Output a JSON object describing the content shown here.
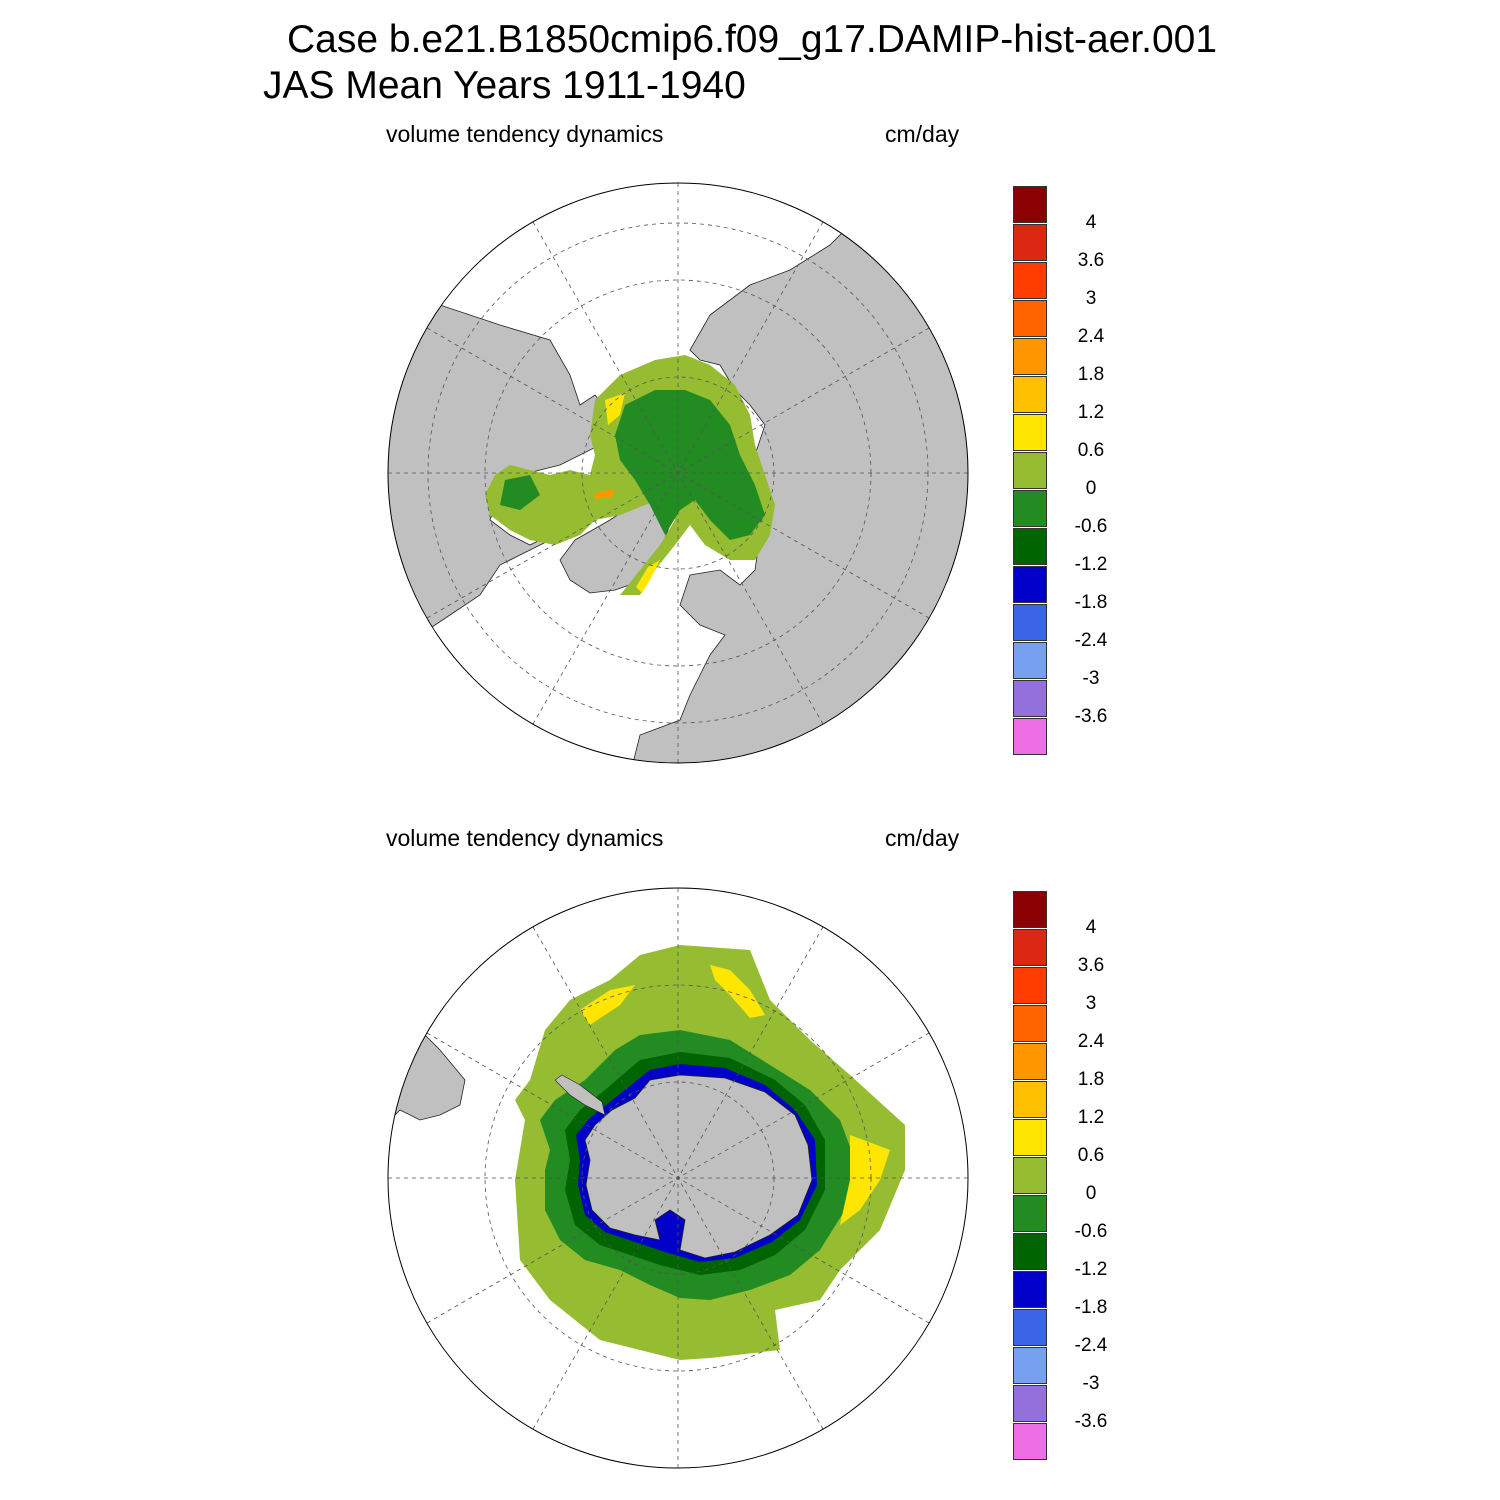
{
  "title": {
    "line1": "Case b.e21.B1850cmip6.f09_g17.DAMIP-hist-aer.001",
    "line2": "JAS Mean   Years 1911-1940"
  },
  "panels": [
    {
      "id": "north",
      "subtitle_left": "volume tendency dynamics",
      "subtitle_right": "cm/day",
      "hemisphere": "Northern"
    },
    {
      "id": "south",
      "subtitle_left": "volume tendency dynamics",
      "subtitle_right": "cm/day",
      "hemisphere": "Southern"
    }
  ],
  "colorbar": {
    "colors": [
      "#8b0000",
      "#dc2812",
      "#ff3c00",
      "#ff6400",
      "#ff9600",
      "#ffc000",
      "#ffe600",
      "#96bd32",
      "#228b22",
      "#006400",
      "#0000c8",
      "#3c64e6",
      "#78a0f0",
      "#9370db",
      "#ee6ee6"
    ],
    "labels": [
      "4",
      "3.6",
      "3",
      "2.4",
      "1.8",
      "1.2",
      "0.6",
      "0",
      "-0.6",
      "-1.2",
      "-1.8",
      "-2.4",
      "-3",
      "-3.6"
    ]
  },
  "map_colors": {
    "land": "#c0c0c0",
    "ocean": "#ffffff",
    "grid": "#555555"
  }
}
